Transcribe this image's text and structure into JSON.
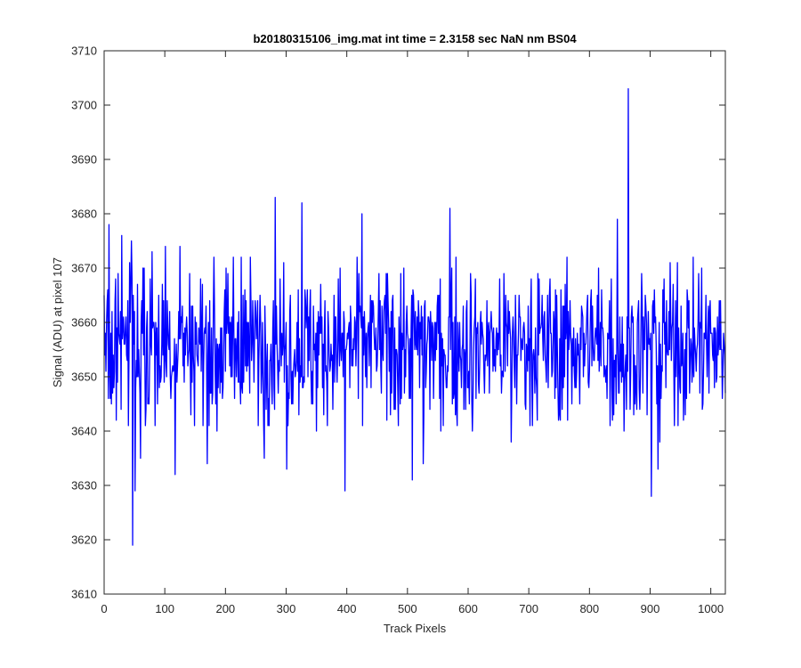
{
  "chart_data": {
    "type": "line",
    "title": "b20180315106_img.mat int time = 2.3158 sec  NaN nm BS04",
    "xlabel": "Track Pixels",
    "ylabel": "Signal (ADU) at pixel 107",
    "xlim": [
      0,
      1024
    ],
    "ylim": [
      3610,
      3710
    ],
    "xticks": [
      0,
      100,
      200,
      300,
      400,
      500,
      600,
      700,
      800,
      900,
      1000
    ],
    "yticks": [
      3610,
      3620,
      3630,
      3640,
      3650,
      3660,
      3670,
      3680,
      3690,
      3700,
      3710
    ],
    "grid": false,
    "legend": "none",
    "series": [
      {
        "color": "#0000ff",
        "noise": {
          "count": 1024,
          "baseline": 3656,
          "spread": 7,
          "seed": 107
        },
        "points": [
          [
            1,
            3654
          ],
          [
            6,
            3666
          ],
          [
            8,
            3678
          ],
          [
            10,
            3646
          ],
          [
            20,
            3642
          ],
          [
            27,
            3662
          ],
          [
            29,
            3676
          ],
          [
            40,
            3641
          ],
          [
            42,
            3671
          ],
          [
            45,
            3675
          ],
          [
            47,
            3619
          ],
          [
            51,
            3629
          ],
          [
            55,
            3667
          ],
          [
            60,
            3635
          ],
          [
            64,
            3670
          ],
          [
            79,
            3673
          ],
          [
            88,
            3645
          ],
          [
            101,
            3674
          ],
          [
            117,
            3632
          ],
          [
            125,
            3674
          ],
          [
            170,
            3634
          ],
          [
            186,
            3640
          ],
          [
            226,
            3672
          ],
          [
            264,
            3635
          ],
          [
            282,
            3683
          ],
          [
            301,
            3633
          ],
          [
            326,
            3682
          ],
          [
            350,
            3640
          ],
          [
            397,
            3629
          ],
          [
            425,
            3680
          ],
          [
            508,
            3631
          ],
          [
            526,
            3634
          ],
          [
            555,
            3640
          ],
          [
            570,
            3681
          ],
          [
            607,
            3640
          ],
          [
            671,
            3638
          ],
          [
            750,
            3643
          ],
          [
            840,
            3643
          ],
          [
            846,
            3679
          ],
          [
            857,
            3640
          ],
          [
            864,
            3703
          ],
          [
            867,
            3644
          ],
          [
            895,
            3643
          ],
          [
            902,
            3628
          ],
          [
            913,
            3633
          ],
          [
            916,
            3638
          ],
          [
            945,
            3671
          ],
          [
            960,
            3646
          ],
          [
            980,
            3669
          ],
          [
            1005,
            3659
          ],
          [
            1010,
            3650
          ],
          [
            1024,
            3647
          ]
        ]
      }
    ]
  }
}
